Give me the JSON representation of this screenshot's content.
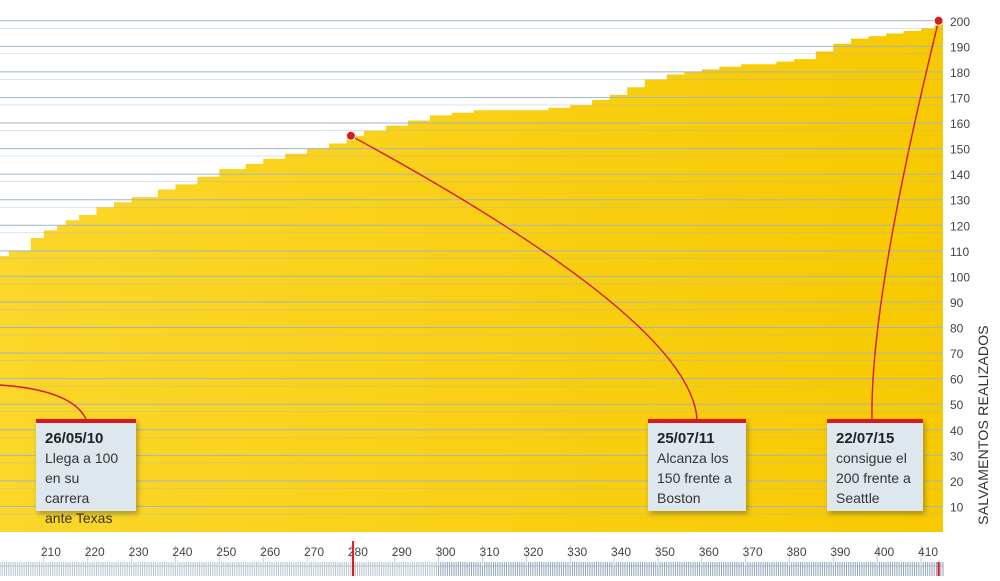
{
  "chart_data": {
    "type": "area",
    "ylabel": "SALVAMENTOS REALIZADOS",
    "xlim": [
      200,
      415
    ],
    "ylim": [
      0,
      205
    ],
    "x_ticks": [
      210,
      220,
      230,
      240,
      250,
      260,
      270,
      280,
      290,
      300,
      310,
      320,
      330,
      340,
      350,
      360,
      370,
      380,
      390,
      400,
      410
    ],
    "y_ticks": [
      10,
      20,
      30,
      40,
      50,
      60,
      70,
      80,
      90,
      100,
      110,
      120,
      130,
      140,
      150,
      160,
      170,
      180,
      190,
      200
    ],
    "grid": true,
    "colors": {
      "area": "#f7c900",
      "accent": "#d71920",
      "grid": "#9fb6c9"
    },
    "series": [
      {
        "x": [
          200,
          202,
          207,
          210,
          213,
          215,
          218,
          222,
          226,
          230,
          236,
          240,
          245,
          250,
          256,
          260,
          265,
          270,
          275,
          279,
          283,
          288,
          293,
          298,
          303,
          308,
          313,
          320,
          325,
          330,
          335,
          339,
          343,
          347,
          352,
          356,
          360,
          364,
          369,
          373,
          377,
          381,
          386,
          390,
          394,
          398,
          402,
          406,
          410,
          413
        ],
        "y": [
          108,
          110,
          115,
          118,
          120,
          122,
          124,
          127,
          129,
          131,
          134,
          136,
          139,
          142,
          144,
          146,
          148,
          150,
          152,
          155,
          157,
          159,
          161,
          163,
          164,
          165,
          165,
          165,
          166,
          167,
          169,
          171,
          174,
          177,
          179,
          180,
          181,
          182,
          183,
          183,
          184,
          185,
          188,
          191,
          193,
          194,
          195,
          196,
          197,
          198
        ]
      }
    ],
    "markers": [
      {
        "x": 280,
        "y": 155
      },
      {
        "x": 414,
        "y": 200
      }
    ],
    "annotations": [
      {
        "date": "26/05/10",
        "text": "Llega a 100\nen su carrera\nante Texas"
      },
      {
        "date": "25/07/11",
        "text": "Alcanza los\n150 frente a\nBoston"
      },
      {
        "date": "22/07/15",
        "text": "consigue el\n200 frente a\nSeattle"
      }
    ]
  }
}
